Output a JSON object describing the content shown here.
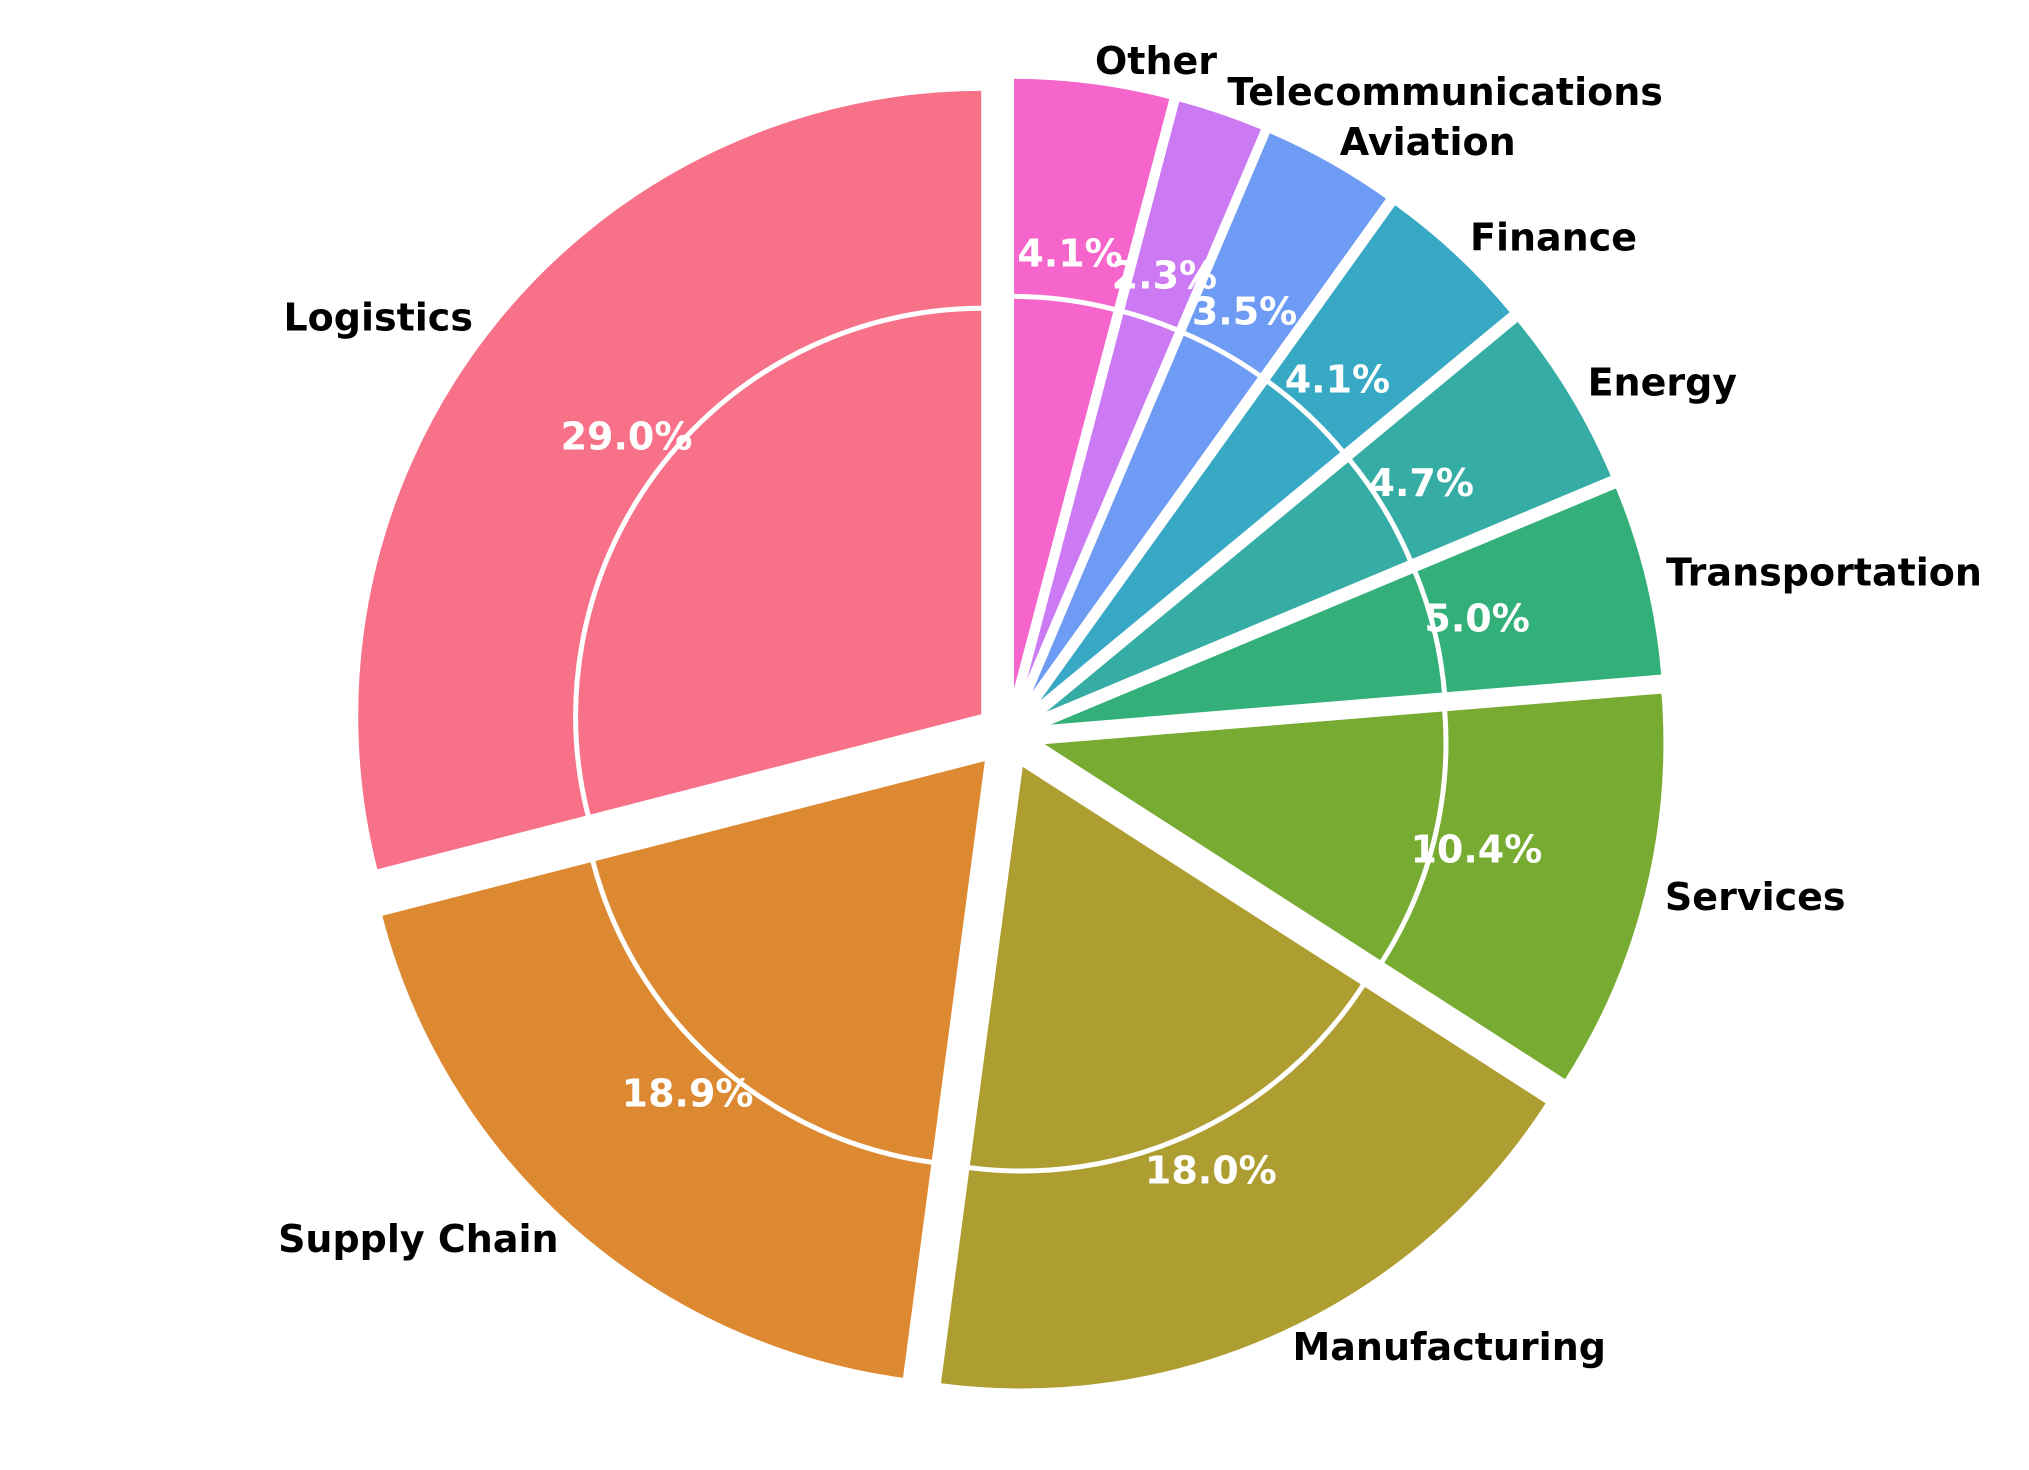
{
  "chart_data": {
    "type": "pie",
    "title": "",
    "categories": [
      "Logistics",
      "Supply Chain",
      "Manufacturing",
      "Services",
      "Transportation",
      "Energy",
      "Finance",
      "Aviation",
      "Telecommunications",
      "Other"
    ],
    "values": [
      29.0,
      18.9,
      18.0,
      10.4,
      5.0,
      4.7,
      4.1,
      3.5,
      2.3,
      4.1
    ],
    "percent_labels": [
      "29.0%",
      "18.9%",
      "18.0%",
      "10.4%",
      "5.0%",
      "4.7%",
      "4.1%",
      "3.5%",
      "2.3%",
      "4.1%"
    ],
    "colors": [
      "#f77189",
      "#dc8932",
      "#ae9d31",
      "#77ab31",
      "#33b07a",
      "#36ada4",
      "#38a9c5",
      "#6e9bf4",
      "#cc7af4",
      "#f565cc"
    ],
    "start_angle": 90,
    "direction": "counterclockwise",
    "exploded": true,
    "legend": "none"
  }
}
